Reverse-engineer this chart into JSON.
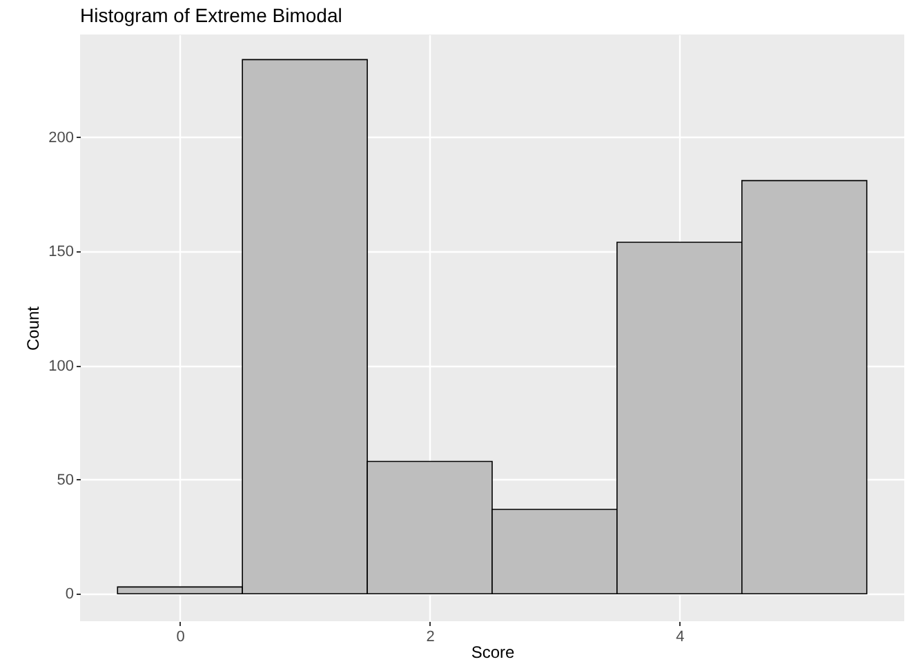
{
  "chart_data": {
    "type": "histogram",
    "title": "Histogram of Extreme Bimodal",
    "xlabel": "Score",
    "ylabel": "Count",
    "bins": [
      -0.5,
      0.5,
      1.5,
      2.5,
      3.5,
      4.5,
      5.5
    ],
    "values": [
      3,
      234,
      58,
      37,
      154,
      181
    ],
    "color": "#bebebe",
    "xlim": [
      -0.8,
      5.8
    ],
    "xticks": [
      0,
      2,
      4
    ],
    "ylim": [
      -12,
      245
    ],
    "yticks": [
      0,
      50,
      100,
      150,
      200
    ],
    "grid": true
  }
}
